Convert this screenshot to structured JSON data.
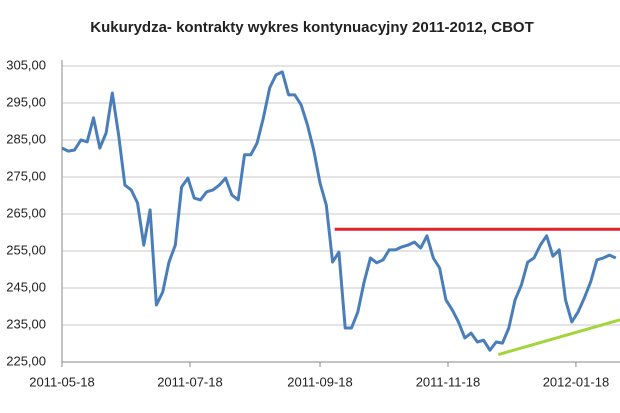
{
  "chart_data": {
    "type": "line",
    "title": "Kukurydza- kontrakty wykres kontynuacyjny 2011-2012,  CBOT",
    "x": [
      "2011-05-18",
      "2011-05-21",
      "2011-05-24",
      "2011-05-27",
      "2011-05-30",
      "2011-06-02",
      "2011-06-05",
      "2011-06-08",
      "2011-06-11",
      "2011-06-14",
      "2011-06-17",
      "2011-06-20",
      "2011-06-23",
      "2011-06-26",
      "2011-06-29",
      "2011-07-02",
      "2011-07-05",
      "2011-07-08",
      "2011-07-11",
      "2011-07-14",
      "2011-07-17",
      "2011-07-20",
      "2011-07-23",
      "2011-07-26",
      "2011-07-29",
      "2011-08-01",
      "2011-08-04",
      "2011-08-07",
      "2011-08-10",
      "2011-08-13",
      "2011-08-16",
      "2011-08-19",
      "2011-08-22",
      "2011-08-25",
      "2011-08-28",
      "2011-08-31",
      "2011-09-03",
      "2011-09-06",
      "2011-09-09",
      "2011-09-12",
      "2011-09-15",
      "2011-09-18",
      "2011-09-21",
      "2011-09-24",
      "2011-09-27",
      "2011-09-30",
      "2011-10-03",
      "2011-10-06",
      "2011-10-09",
      "2011-10-12",
      "2011-10-15",
      "2011-10-18",
      "2011-10-21",
      "2011-10-24",
      "2011-10-27",
      "2011-10-30",
      "2011-11-02",
      "2011-11-05",
      "2011-11-08",
      "2011-11-11",
      "2011-11-14",
      "2011-11-17",
      "2011-11-20",
      "2011-11-23",
      "2011-11-26",
      "2011-11-29",
      "2011-12-02",
      "2011-12-05",
      "2011-12-08",
      "2011-12-11",
      "2011-12-14",
      "2011-12-17",
      "2011-12-20",
      "2011-12-23",
      "2011-12-26",
      "2011-12-29",
      "2012-01-01",
      "2012-01-04",
      "2012-01-07",
      "2012-01-10",
      "2012-01-13",
      "2012-01-16",
      "2012-01-19",
      "2012-01-22",
      "2012-01-25",
      "2012-01-28",
      "2012-01-31",
      "2012-02-03",
      "2012-02-06"
    ],
    "series": [
      {
        "color": "#4a7ebb",
        "values": [
          282.8,
          282.0,
          282.3,
          285.0,
          284.5,
          291.0,
          282.8,
          286.9,
          297.7,
          286.4,
          272.8,
          271.5,
          268.0,
          256.6,
          266.1,
          240.4,
          243.9,
          252.0,
          256.6,
          272.3,
          274.7,
          269.3,
          268.8,
          271.0,
          271.5,
          272.8,
          274.7,
          270.1,
          268.8,
          281.0,
          281.0,
          284.2,
          291.0,
          299.1,
          302.6,
          303.4,
          297.2,
          297.2,
          294.5,
          289.1,
          282.3,
          273.4,
          267.4,
          252.0,
          254.7,
          234.2,
          234.2,
          238.5,
          246.6,
          253.1,
          251.8,
          252.6,
          255.3,
          255.3,
          256.1,
          256.6,
          257.4,
          255.8,
          259.1,
          253.1,
          250.4,
          241.8,
          239.1,
          235.8,
          231.5,
          232.8,
          230.4,
          230.9,
          228.2,
          230.4,
          230.1,
          234.2,
          241.8,
          245.8,
          252.0,
          253.1,
          256.6,
          259.1,
          253.6,
          255.3,
          241.8,
          235.8,
          238.5,
          242.3,
          246.6,
          252.6,
          253.1,
          253.9,
          253.1
        ]
      }
    ],
    "annotations": [
      {
        "color": "#e0242a",
        "x": [
          "2011-09-25",
          "2012-02-08"
        ],
        "values": [
          260.9,
          260.9
        ]
      },
      {
        "color": "#a4d43c",
        "x": [
          "2011-12-12",
          "2012-02-08"
        ],
        "values": [
          227.0,
          236.4
        ]
      }
    ],
    "xlim": [
      "2011-05-18",
      "2012-02-08"
    ],
    "xticks": [
      "2011-05-18",
      "2011-07-18",
      "2011-09-18",
      "2011-11-18",
      "2012-01-18"
    ],
    "ylim": [
      225,
      305
    ],
    "yticks": [
      {
        "value": 225,
        "label": "225,00"
      },
      {
        "value": 235,
        "label": "235,00"
      },
      {
        "value": 245,
        "label": "245,00"
      },
      {
        "value": 255,
        "label": "255,00"
      },
      {
        "value": 265,
        "label": "265,00"
      },
      {
        "value": 275,
        "label": "275,00"
      },
      {
        "value": 285,
        "label": "285,00"
      },
      {
        "value": 295,
        "label": "295,00"
      },
      {
        "value": 305,
        "label": "305,00"
      }
    ],
    "grid": true
  }
}
